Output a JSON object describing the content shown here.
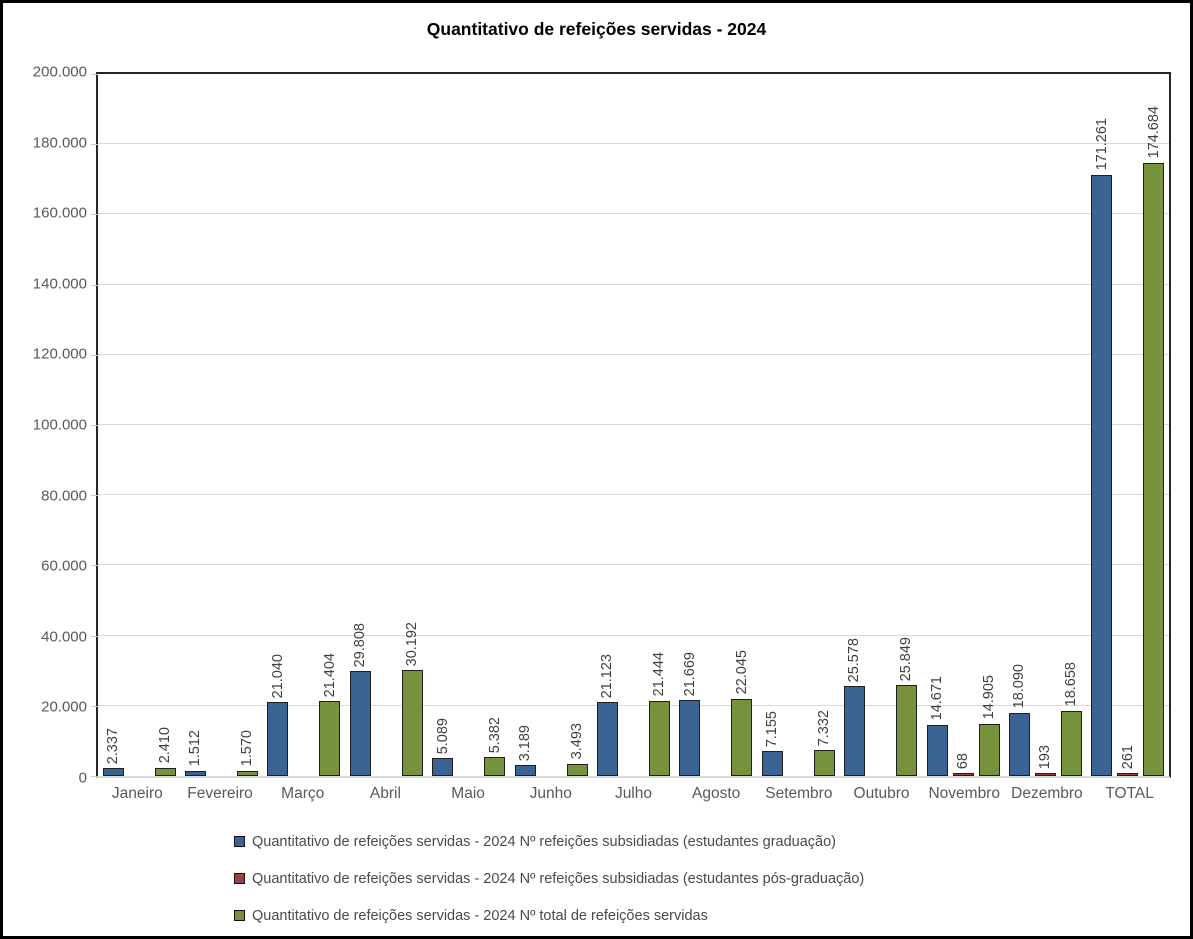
{
  "title": "Quantitativo de refeições servidas - 2024",
  "chart_data": {
    "type": "bar",
    "title": "Quantitativo de refeições servidas - 2024",
    "categories": [
      "Janeiro",
      "Fevereiro",
      "Março",
      "Abril",
      "Maio",
      "Junho",
      "Julho",
      "Agosto",
      "Setembro",
      "Outubro",
      "Novembro",
      "Dezembro",
      "TOTAL"
    ],
    "series": [
      {
        "name": "Quantitativo de refeições servidas - 2024 Nº refeições subsidiadas (estudantes graduação)",
        "color": "#3A6394",
        "values": [
          2337,
          1512,
          21040,
          29808,
          5089,
          3189,
          21123,
          21669,
          7155,
          25578,
          14671,
          18090,
          171261
        ],
        "labels": [
          "2.337",
          "1.512",
          "21.040",
          "29.808",
          "5.089",
          "3.189",
          "21.123",
          "21.669",
          "7.155",
          "25.578",
          "14.671",
          "18.090",
          "171.261"
        ]
      },
      {
        "name": "Quantitativo de refeições servidas - 2024 Nº refeições subsidiadas (estudantes pós-graduação)",
        "color": "#9A4141",
        "values": [
          0,
          0,
          0,
          0,
          0,
          0,
          0,
          0,
          0,
          0,
          68,
          193,
          261
        ],
        "labels": [
          "",
          "",
          "",
          "",
          "",
          "",
          "",
          "",
          "",
          "",
          "68",
          "193",
          "261"
        ]
      },
      {
        "name": "Quantitativo de refeições servidas - 2024 Nº total de refeições servidas",
        "color": "#76923C",
        "values": [
          2410,
          1570,
          21404,
          30192,
          5382,
          3493,
          21444,
          22045,
          7332,
          25849,
          14905,
          18658,
          174684
        ],
        "labels": [
          "2.410",
          "1.570",
          "21.404",
          "30.192",
          "5.382",
          "3.493",
          "21.444",
          "22.045",
          "7.332",
          "25.849",
          "14.905",
          "18.658",
          "174.684"
        ]
      }
    ],
    "ylim": [
      0,
      200000
    ],
    "ytick_step": 20000,
    "ytick_labels": [
      "0",
      "20.000",
      "40.000",
      "60.000",
      "80.000",
      "100.000",
      "120.000",
      "140.000",
      "160.000",
      "180.000",
      "200.000"
    ],
    "grid": true,
    "gridline_color": "#D9D9D9",
    "bar_border_color": "#1F1F1F",
    "legend_position": "bottom",
    "xlabel": "",
    "ylabel": ""
  }
}
